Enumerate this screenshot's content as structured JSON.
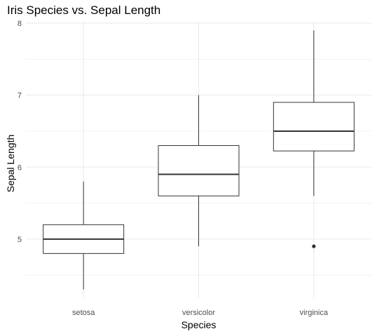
{
  "chart_data": {
    "type": "boxplot",
    "title": "Iris Species vs. Sepal Length",
    "xlabel": "Species",
    "ylabel": "Sepal Length",
    "categories": [
      "setosa",
      "versicolor",
      "virginica"
    ],
    "boxes": [
      {
        "category": "setosa",
        "min": 4.3,
        "q1": 4.8,
        "median": 5.0,
        "q3": 5.2,
        "max": 5.8,
        "outliers": []
      },
      {
        "category": "versicolor",
        "min": 4.9,
        "q1": 5.6,
        "median": 5.9,
        "q3": 6.3,
        "max": 7.0,
        "outliers": []
      },
      {
        "category": "virginica",
        "min": 5.6,
        "q1": 6.225,
        "median": 6.5,
        "q3": 6.9,
        "max": 7.9,
        "outliers": [
          4.9
        ]
      }
    ],
    "yticks": [
      5,
      6,
      7,
      8
    ],
    "ylim": [
      4.18,
      8.02
    ],
    "grid": true,
    "colors": {
      "box_stroke": "#333333",
      "grid": "#ebebeb",
      "background": "#ffffff"
    }
  }
}
